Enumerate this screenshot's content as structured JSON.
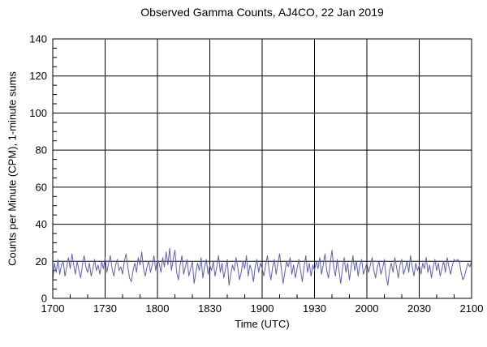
{
  "chart_data": {
    "type": "line",
    "title": "Observed Gamma Counts, AJ4CO, 22 Jan 2019",
    "xlabel": "Time (UTC)",
    "ylabel": "Counts per Minute (CPM), 1-minute sums",
    "x_tick_labels": [
      "1700",
      "1730",
      "1800",
      "1830",
      "1900",
      "1930",
      "2000",
      "2030",
      "2100"
    ],
    "x_major_minutes": [
      0,
      30,
      60,
      90,
      120,
      150,
      180,
      210,
      240
    ],
    "x_minor_step_minutes": 10,
    "x_range_minutes": [
      0,
      240
    ],
    "ylim": [
      0,
      140
    ],
    "y_major_step": 20,
    "y_minor_step": 5,
    "grid": true,
    "legend": "none",
    "background_color": "#ffffff",
    "axis_color": "#000000",
    "grid_color": "#000000",
    "text_color": "#000000",
    "line_color": "#5f5fad",
    "x_unit": "minutes since 17:00 UTC, one sample per minute",
    "values": [
      10,
      19,
      14,
      21,
      13,
      18,
      20,
      12,
      17,
      22,
      16,
      24,
      18,
      13,
      20,
      15,
      11,
      18,
      23,
      17,
      14,
      19,
      12,
      16,
      21,
      15,
      18,
      13,
      20,
      16,
      22,
      14,
      19,
      23,
      16,
      12,
      18,
      21,
      15,
      17,
      13,
      20,
      24,
      17,
      11,
      9,
      15,
      19,
      14,
      22,
      18,
      25,
      16,
      12,
      17,
      20,
      14,
      18,
      23,
      15,
      21,
      19,
      14,
      22,
      17,
      25,
      18,
      27,
      15,
      21,
      26,
      14,
      10,
      18,
      23,
      13,
      17,
      21,
      12,
      16,
      20,
      8,
      14,
      19,
      15,
      22,
      11,
      17,
      21,
      13,
      18,
      15,
      20,
      12,
      17,
      23,
      14,
      19,
      11,
      16,
      21,
      7,
      13,
      18,
      15,
      22,
      17,
      10,
      14,
      20,
      16,
      23,
      12,
      18,
      15,
      9,
      17,
      21,
      14,
      19,
      16,
      12,
      18,
      23,
      15,
      10,
      17,
      21,
      13,
      19,
      24,
      16,
      8,
      14,
      20,
      17,
      22,
      13,
      18,
      11,
      16,
      21,
      15,
      9,
      17,
      23,
      14,
      19,
      12,
      18,
      15,
      20,
      16,
      22,
      13,
      18,
      24,
      15,
      11,
      19,
      26,
      17,
      12,
      21,
      15,
      8,
      16,
      22,
      14,
      19,
      10,
      17,
      23,
      15,
      20,
      12,
      18,
      21,
      13,
      16,
      19,
      14,
      18,
      22,
      15,
      11,
      17,
      20,
      13,
      16,
      21,
      12,
      7,
      15,
      19,
      14,
      22,
      17,
      11,
      18,
      21,
      13,
      16,
      20,
      14,
      23,
      17,
      12,
      19,
      15,
      18,
      13,
      19,
      16,
      22,
      14,
      18,
      11,
      17,
      21,
      15,
      19,
      12,
      16,
      20,
      14,
      22,
      17,
      13,
      18,
      21,
      20,
      21,
      20,
      14,
      10,
      12,
      16,
      19,
      17,
      20
    ]
  }
}
